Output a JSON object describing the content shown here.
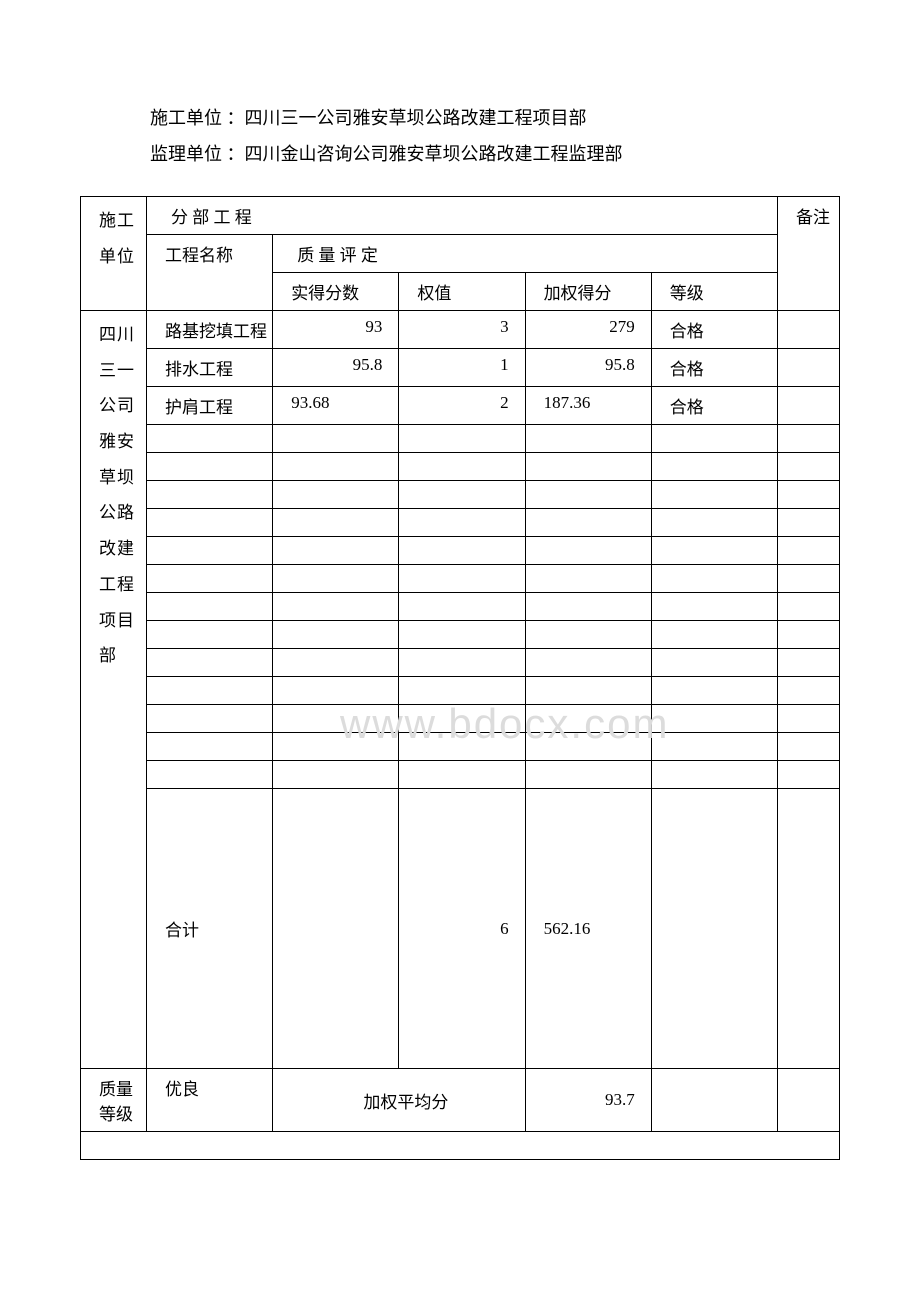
{
  "header": {
    "construction_unit": "施工单位 ：四川三一公司雅安草坝公路改建工程项目部",
    "supervision_unit": "监理单位 ：四川金山咨询公司雅安草坝公路改建工程监理部"
  },
  "table": {
    "unit_col_header": "施工单位",
    "section_header": "分 部 工 程",
    "remark_header": "备注",
    "name_col_header": "工程名称",
    "quality_header": "质 量 评 定",
    "col_score": "实得分数",
    "col_weight": "权值",
    "col_wscore": "加权得分",
    "col_grade": "等级",
    "unit_name": "四川三一公司雅安草坝公路改建工程项目部",
    "rows": [
      {
        "name": "路基挖填工程",
        "score": "93",
        "weight": "3",
        "wscore": "279",
        "grade": "合格"
      },
      {
        "name": "排水工程",
        "score": "95.8",
        "weight": "1",
        "wscore": "95.8",
        "grade": "合格"
      },
      {
        "name": "护肩工程",
        "score": "93.68",
        "weight": "2",
        "wscore": "187.36",
        "grade": "合格"
      }
    ],
    "sum_label": "合计",
    "sum_weight": "6",
    "sum_wscore": "562.16",
    "quality_grade_label": "质量等级",
    "quality_grade_value": "优良",
    "wavg_label": "加权平均分",
    "wavg_value": "93.7"
  },
  "watermark": "www.bdocx.com"
}
